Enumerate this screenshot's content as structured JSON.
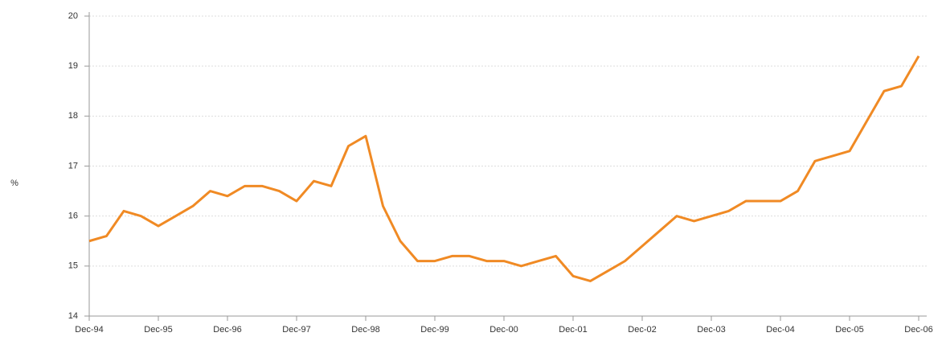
{
  "chart_data": {
    "type": "line",
    "ylabel": "%",
    "categories": [
      "Dec-94",
      null,
      null,
      null,
      "Dec-95",
      null,
      null,
      null,
      "Dec-96",
      null,
      null,
      null,
      "Dec-97",
      null,
      null,
      null,
      "Dec-98",
      null,
      null,
      null,
      "Dec-99",
      null,
      null,
      null,
      "Dec-00",
      null,
      null,
      null,
      "Dec-01",
      null,
      null,
      null,
      "Dec-02",
      null,
      null,
      null,
      "Dec-03",
      null,
      null,
      null,
      "Dec-04",
      null,
      null,
      null,
      "Dec-05",
      null,
      null,
      null,
      "Dec-06"
    ],
    "series": [
      {
        "color": "#f08a24",
        "values": [
          15.5,
          15.6,
          16.1,
          16.0,
          15.8,
          16.0,
          16.2,
          16.5,
          16.4,
          16.6,
          16.6,
          16.5,
          16.3,
          16.7,
          16.6,
          17.4,
          17.6,
          16.2,
          15.5,
          15.1,
          15.1,
          15.2,
          15.2,
          15.1,
          15.1,
          15.0,
          15.1,
          15.2,
          14.8,
          14.7,
          14.9,
          15.1,
          15.4,
          15.7,
          16.0,
          15.9,
          16.0,
          16.1,
          16.3,
          16.3,
          16.3,
          16.5,
          17.1,
          17.2,
          17.3,
          17.9,
          18.5,
          18.6,
          19.2
        ]
      }
    ],
    "ylim": [
      14,
      20
    ],
    "yticks": [
      14,
      15,
      16,
      17,
      18,
      19,
      20
    ],
    "grid": true
  }
}
